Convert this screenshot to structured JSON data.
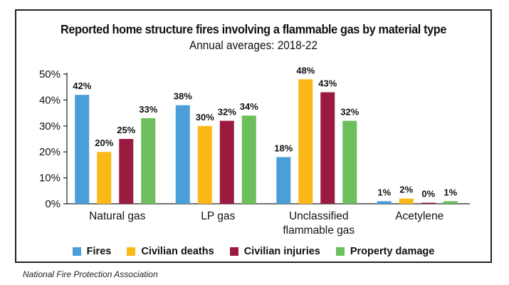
{
  "chart_data": {
    "type": "bar",
    "title": "Reported home structure fires involving a flammable gas by material type",
    "subtitle": "Annual averages: 2018-22",
    "categories": [
      "Natural gas",
      "LP gas",
      "Unclassified flammable gas",
      "Acetylene"
    ],
    "category_label_lines": [
      [
        "Natural gas"
      ],
      [
        "LP gas"
      ],
      [
        "Unclassified",
        "flammable gas"
      ],
      [
        "Acetylene"
      ]
    ],
    "series": [
      {
        "name": "Fires",
        "color": "#4a9fd8",
        "values": [
          42,
          38,
          18,
          1
        ]
      },
      {
        "name": "Civilian deaths",
        "color": "#fbb917",
        "values": [
          20,
          30,
          48,
          2
        ]
      },
      {
        "name": "Civilian injuries",
        "color": "#9b1b40",
        "values": [
          25,
          32,
          43,
          0
        ]
      },
      {
        "name": "Property damage",
        "color": "#6cbf5b",
        "values": [
          33,
          34,
          32,
          1
        ]
      }
    ],
    "ylim": [
      0,
      50
    ],
    "yticks": [
      "0%",
      "10%",
      "20%",
      "30%",
      "40%",
      "50%"
    ],
    "value_suffix": "%",
    "legend_position": "bottom"
  },
  "source": "National Fire Protection Association"
}
